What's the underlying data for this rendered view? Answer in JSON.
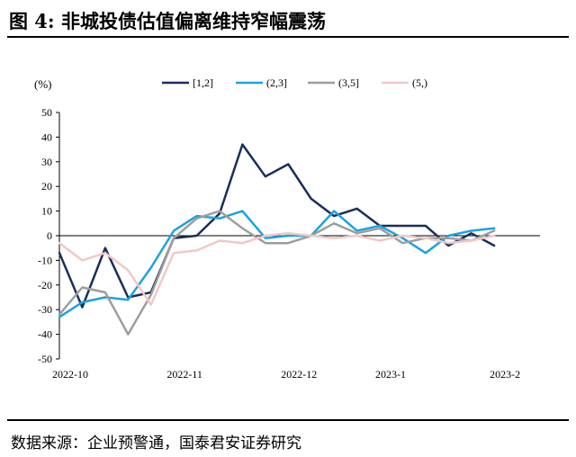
{
  "figure": {
    "title": "图 4:  非城投债估值偏离维持窄幅震荡",
    "source": "数据来源：企业预警通，国泰君安证券研究"
  },
  "chart_data": {
    "type": "line",
    "ylabel": "(%)",
    "ylim": [
      -50,
      50
    ],
    "yticks": [
      -50,
      -40,
      -30,
      -20,
      -10,
      0,
      10,
      20,
      30,
      40,
      50
    ],
    "x": [
      "2022-10-03",
      "2022-10-10",
      "2022-10-17",
      "2022-10-24",
      "2022-10-31",
      "2022-11-07",
      "2022-11-14",
      "2022-11-21",
      "2022-11-28",
      "2022-12-05",
      "2022-12-12",
      "2022-12-19",
      "2022-12-26",
      "2023-01-02",
      "2023-01-09",
      "2023-01-16",
      "2023-01-23",
      "2023-01-30",
      "2023-02-06",
      "2023-02-13",
      "2023-02-20",
      "2023-02-27"
    ],
    "xtick_labels": [
      "2022-10",
      "2022-11",
      "2022-12",
      "2023-1",
      "2023-2"
    ],
    "xtick_index": [
      0,
      5,
      10,
      14,
      19
    ],
    "legend_position": "top",
    "series": [
      {
        "name": "[1,2]",
        "color": "#1a2e5c",
        "values": [
          -7,
          -29,
          -5,
          -25,
          -23,
          -1,
          0,
          9,
          37,
          24,
          29,
          15,
          8,
          11,
          4,
          4,
          4,
          -4,
          1,
          -4,
          null,
          null
        ]
      },
      {
        "name": "(2,3]",
        "color": "#1aa3e0",
        "values": [
          -33,
          -27,
          -25,
          -26,
          -13,
          2,
          8,
          7,
          10,
          -1,
          0,
          0,
          10,
          2,
          4,
          -1,
          -7,
          0,
          2,
          3,
          null,
          null
        ]
      },
      {
        "name": "(3,5]",
        "color": "#9e9e9e",
        "values": [
          -32,
          -21,
          -23,
          -40,
          -24,
          -1,
          7,
          10,
          3,
          -3,
          -3,
          0,
          5,
          1,
          3,
          -3,
          -1,
          -1,
          -2,
          2,
          null,
          null
        ]
      },
      {
        "name": "(5,)",
        "color": "#f0c8c8",
        "values": [
          -3,
          -10,
          -7,
          -14,
          -28,
          -7,
          -6,
          -2,
          -3,
          0,
          1,
          0,
          -1,
          0,
          -2,
          0,
          -1,
          -3,
          -2,
          0,
          null,
          null
        ]
      }
    ]
  }
}
